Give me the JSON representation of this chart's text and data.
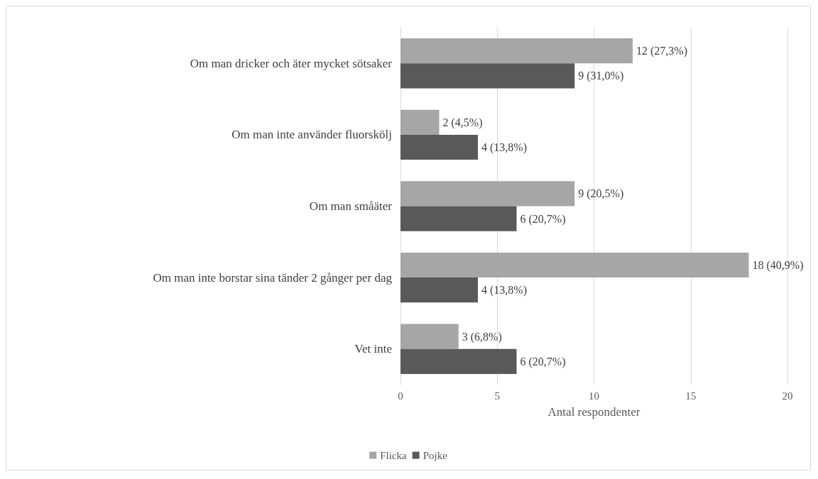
{
  "chart_data": {
    "type": "bar",
    "orientation": "horizontal",
    "xlabel": "Antal respondenter",
    "categories": [
      "Om man dricker och äter mycket sötsaker",
      "Om man inte använder fluorskölj",
      "Om man småäter",
      "Om man inte borstar sina tänder 2 gånger per dag",
      "Vet inte"
    ],
    "series": [
      {
        "name": "Flicka",
        "color": "#a6a6a6",
        "values": [
          12,
          2,
          9,
          18,
          3
        ],
        "value_labels": [
          "12 (27,3%)",
          "2 (4,5%)",
          "9 (20,5%)",
          "18 (40,9%)",
          "3 (6,8%)"
        ]
      },
      {
        "name": "Pojke",
        "color": "#595959",
        "values": [
          9,
          4,
          6,
          4,
          6
        ],
        "value_labels": [
          "9 (31,0%)",
          "4 (13,8%)",
          "6 (20,7%)",
          "4 (13,8%)",
          "6 (20,7%)"
        ]
      }
    ],
    "xlim": [
      0,
      20
    ],
    "xticks": [
      0,
      5,
      10,
      15,
      20
    ],
    "grid": "x",
    "legend": "bottom"
  }
}
